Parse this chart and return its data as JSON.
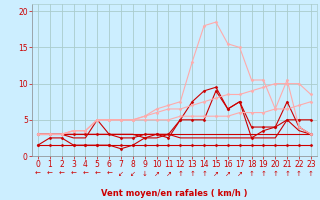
{
  "xlabel": "Vent moyen/en rafales ( km/h )",
  "background_color": "#cceeff",
  "grid_color": "#aacccc",
  "x_ticks": [
    0,
    1,
    2,
    3,
    4,
    5,
    6,
    7,
    8,
    9,
    10,
    11,
    12,
    13,
    14,
    15,
    16,
    17,
    18,
    19,
    20,
    21,
    22,
    23
  ],
  "y_ticks": [
    0,
    5,
    10,
    15,
    20
  ],
  "ylim": [
    0,
    21
  ],
  "xlim": [
    -0.5,
    23.5
  ],
  "lines": [
    {
      "y": [
        3.0,
        3.0,
        3.0,
        3.0,
        3.0,
        3.0,
        3.0,
        3.0,
        3.0,
        3.0,
        3.0,
        3.0,
        3.0,
        3.0,
        3.0,
        3.0,
        3.0,
        3.0,
        3.0,
        3.0,
        3.0,
        3.0,
        3.0,
        3.0
      ],
      "color": "#cc0000",
      "lw": 0.8,
      "marker": null,
      "ms": 0
    },
    {
      "y": [
        1.5,
        1.5,
        1.5,
        1.5,
        1.5,
        1.5,
        1.5,
        1.5,
        1.5,
        1.5,
        1.5,
        1.5,
        1.5,
        1.5,
        1.5,
        1.5,
        1.5,
        1.5,
        1.5,
        1.5,
        1.5,
        1.5,
        1.5,
        1.5
      ],
      "color": "#cc0000",
      "lw": 0.8,
      "marker": "D",
      "ms": 1.5
    },
    {
      "y": [
        3.0,
        3.0,
        3.0,
        2.5,
        2.5,
        5.0,
        3.0,
        3.0,
        3.0,
        2.5,
        2.5,
        3.0,
        2.5,
        2.5,
        2.5,
        2.5,
        2.5,
        2.5,
        2.5,
        2.5,
        2.5,
        5.0,
        3.5,
        3.0
      ],
      "color": "#cc0000",
      "lw": 0.8,
      "marker": null,
      "ms": 0
    },
    {
      "y": [
        1.5,
        2.5,
        2.5,
        1.5,
        1.5,
        1.5,
        1.5,
        1.0,
        1.5,
        2.5,
        3.0,
        2.5,
        5.0,
        7.5,
        9.0,
        9.5,
        6.5,
        7.5,
        2.5,
        3.5,
        4.0,
        7.5,
        4.0,
        3.0
      ],
      "color": "#cc0000",
      "lw": 0.8,
      "marker": "D",
      "ms": 1.5
    },
    {
      "y": [
        3.0,
        3.0,
        3.0,
        3.0,
        3.0,
        3.0,
        3.0,
        2.5,
        2.5,
        3.0,
        3.0,
        3.0,
        5.0,
        5.0,
        5.0,
        9.0,
        6.5,
        7.5,
        4.0,
        4.0,
        4.0,
        5.0,
        5.0,
        5.0
      ],
      "color": "#cc0000",
      "lw": 0.8,
      "marker": "D",
      "ms": 1.5
    },
    {
      "y": [
        3.0,
        3.0,
        3.0,
        3.5,
        3.5,
        5.0,
        5.0,
        5.0,
        5.0,
        5.0,
        5.0,
        5.0,
        5.5,
        5.5,
        5.5,
        5.5,
        5.5,
        6.0,
        6.0,
        6.0,
        6.5,
        6.5,
        7.0,
        7.5
      ],
      "color": "#ffaaaa",
      "lw": 0.8,
      "marker": "D",
      "ms": 1.5
    },
    {
      "y": [
        3.0,
        3.0,
        3.0,
        3.5,
        3.5,
        5.0,
        5.0,
        5.0,
        5.0,
        5.5,
        6.0,
        6.5,
        6.5,
        7.0,
        7.5,
        8.0,
        8.5,
        8.5,
        9.0,
        9.5,
        10.0,
        10.0,
        10.0,
        8.5
      ],
      "color": "#ffaaaa",
      "lw": 0.8,
      "marker": "D",
      "ms": 1.5
    },
    {
      "y": [
        3.0,
        3.0,
        3.0,
        3.5,
        3.5,
        5.0,
        5.0,
        5.0,
        5.0,
        5.5,
        6.5,
        7.0,
        7.5,
        13.0,
        18.0,
        18.5,
        15.5,
        15.0,
        10.5,
        10.5,
        6.5,
        10.5,
        4.0,
        3.0
      ],
      "color": "#ffaaaa",
      "lw": 0.8,
      "marker": "D",
      "ms": 1.5
    }
  ],
  "arrow_labels": [
    "←",
    "←",
    "←",
    "←",
    "←",
    "←",
    "←",
    "↙",
    "↙",
    "↓",
    "↗",
    "↗",
    "↑",
    "↑",
    "↑",
    "↗",
    "↗",
    "↗",
    "↑",
    "↑",
    "↑",
    "↑",
    "↑",
    "↑"
  ],
  "tick_color": "#cc0000",
  "label_fontsize": 6,
  "tick_fontsize": 5.5,
  "arrow_fontsize": 5.0
}
